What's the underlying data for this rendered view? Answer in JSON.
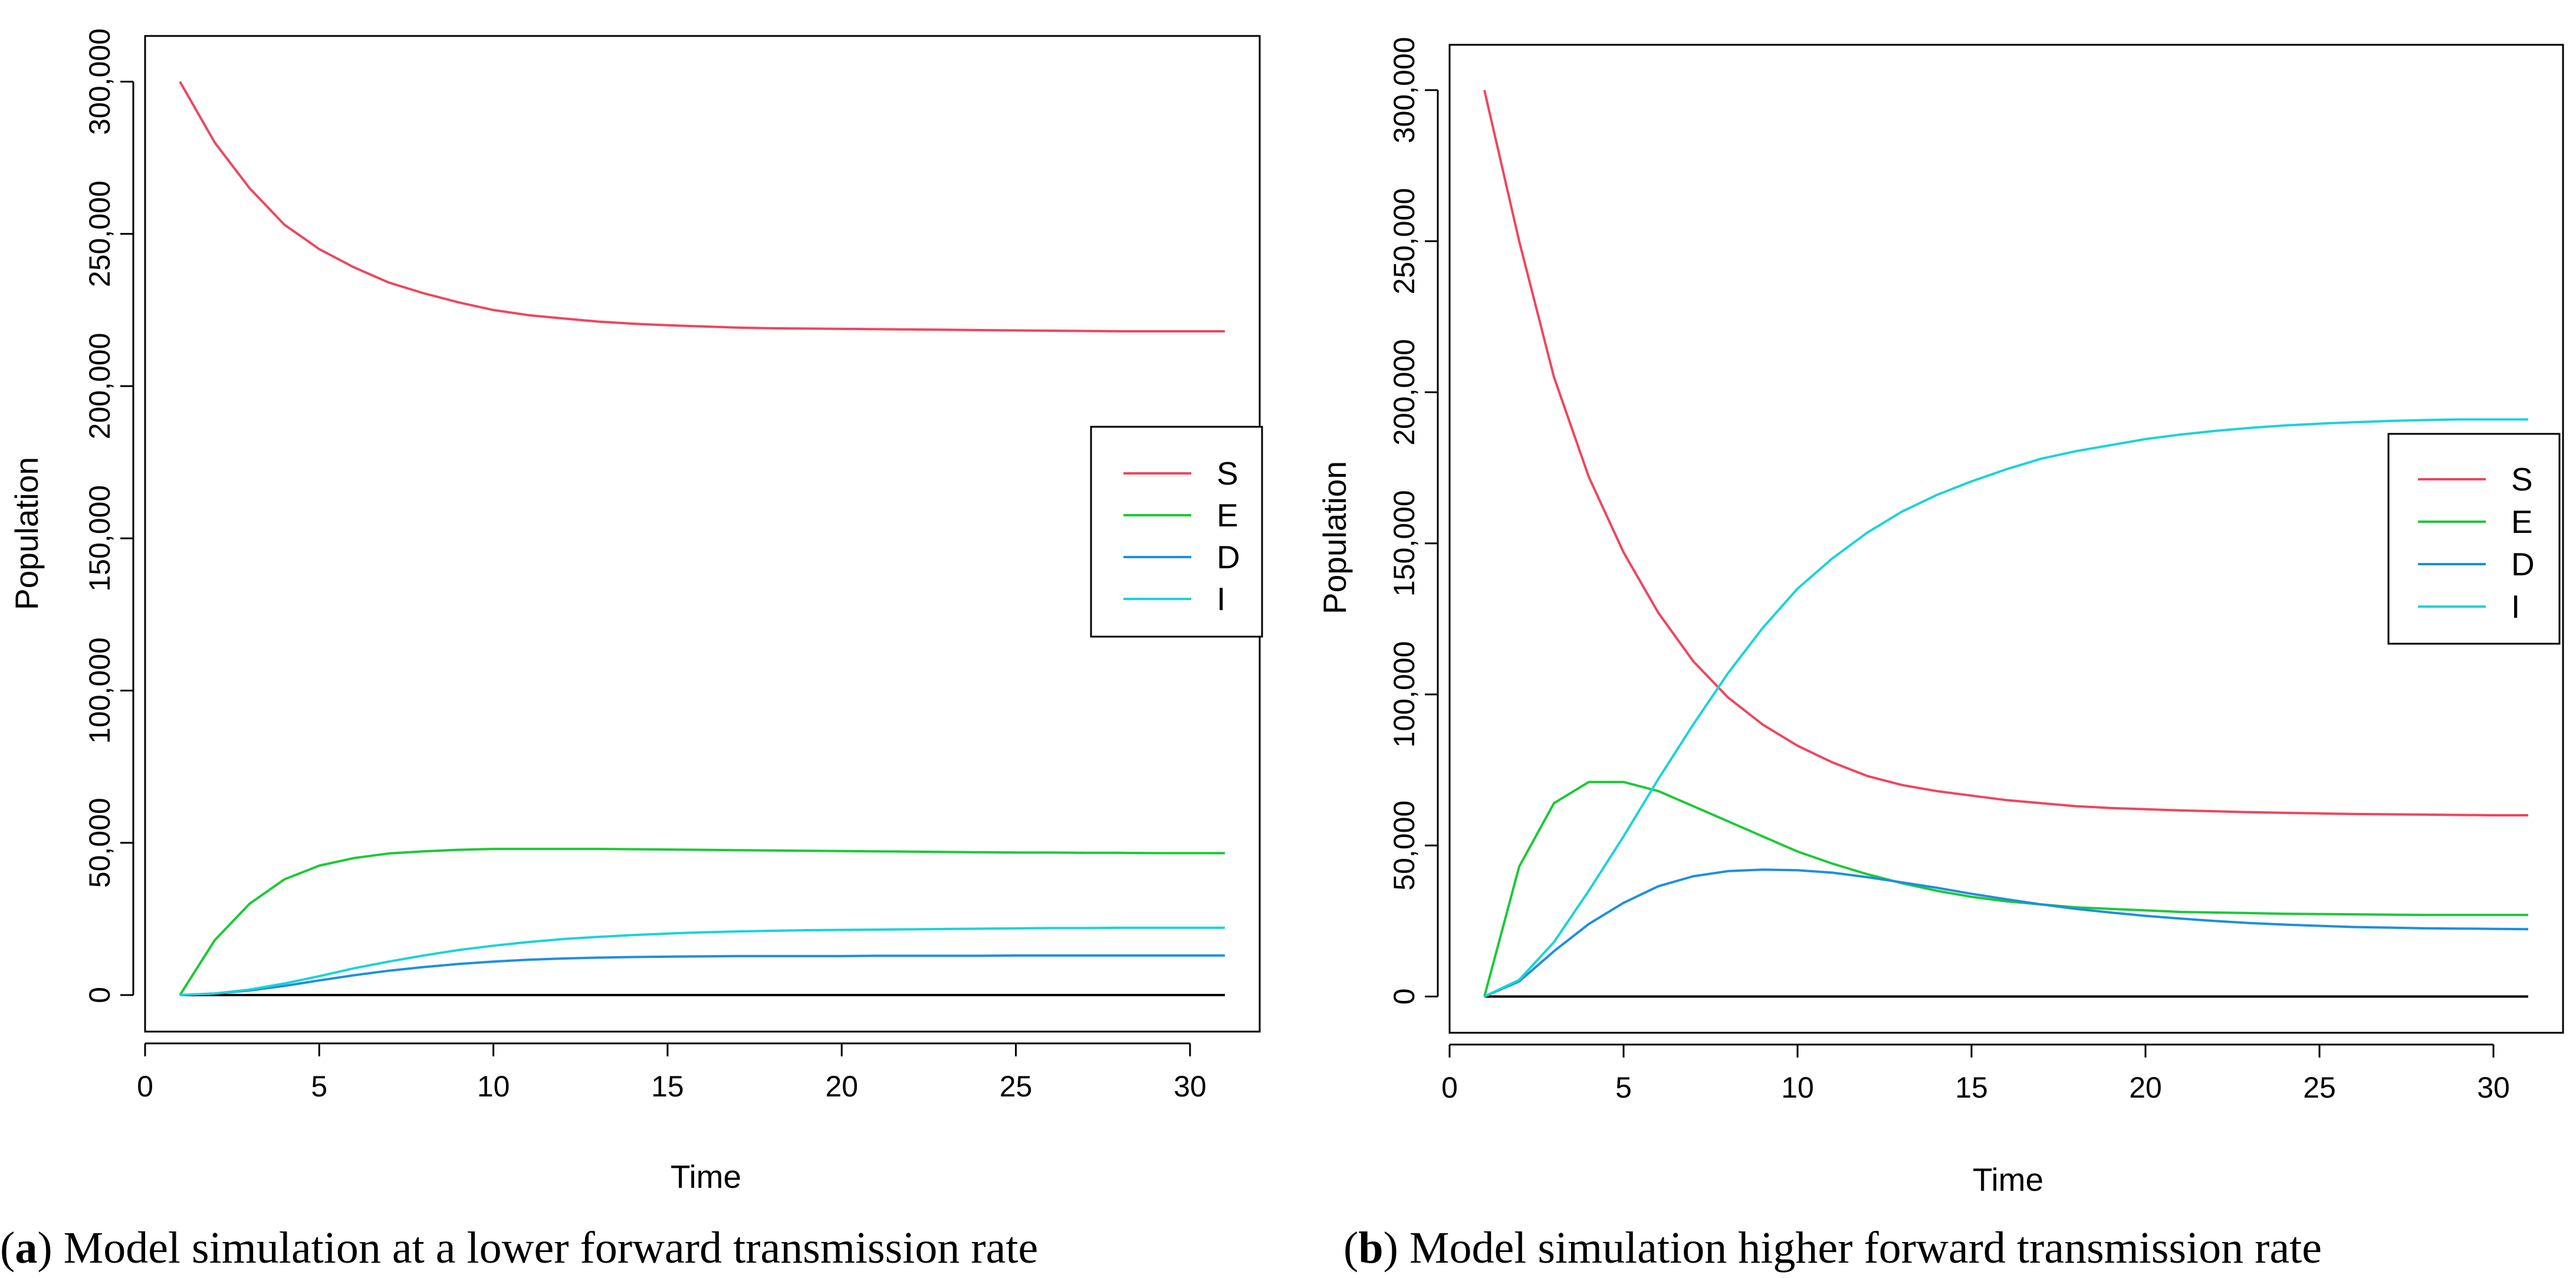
{
  "chart_data": [
    {
      "type": "line",
      "caption_label": "a",
      "caption_text": "Model simulation at a lower forward transmission rate",
      "xlabel": "Time",
      "ylabel": "Population",
      "xlim": [
        0,
        32
      ],
      "ylim": [
        -12000,
        315000
      ],
      "xticks": [
        0,
        5,
        10,
        15,
        20,
        25,
        30
      ],
      "yticks": [
        0,
        50000,
        100000,
        150000,
        200000,
        250000,
        300000
      ],
      "ytick_labels": [
        "0",
        "50,000",
        "100,000",
        "150,000",
        "200,000",
        "250,000",
        "300,000"
      ],
      "legend_position": "right-middle",
      "x": [
        1,
        2,
        3,
        4,
        5,
        6,
        7,
        8,
        9,
        10,
        11,
        12,
        13,
        14,
        15,
        16,
        17,
        18,
        19,
        20,
        21,
        22,
        23,
        24,
        25,
        26,
        27,
        28,
        29,
        30,
        31
      ],
      "baseline": {
        "value": 0,
        "x_from": 1,
        "x_to": 31,
        "color": "#000000"
      },
      "series": [
        {
          "name": "S",
          "color": "#F0455E",
          "values": [
            300000,
            280000,
            265000,
            253000,
            245000,
            239000,
            234000,
            230500,
            227500,
            225000,
            223300,
            222200,
            221200,
            220500,
            220000,
            219600,
            219200,
            219000,
            218900,
            218800,
            218700,
            218600,
            218500,
            218400,
            218300,
            218200,
            218100,
            218000,
            218000,
            218000,
            218000
          ]
        },
        {
          "name": "E",
          "color": "#1BC937",
          "values": [
            0,
            18000,
            30000,
            38000,
            42500,
            45000,
            46500,
            47200,
            47700,
            48000,
            48000,
            48000,
            48000,
            47900,
            47800,
            47700,
            47600,
            47500,
            47400,
            47300,
            47200,
            47100,
            47000,
            46900,
            46800,
            46800,
            46700,
            46700,
            46600,
            46600,
            46600
          ]
        },
        {
          "name": "D",
          "color": "#1D8FE0",
          "values": [
            0,
            500,
            1500,
            3000,
            4800,
            6500,
            8000,
            9200,
            10200,
            11000,
            11600,
            12000,
            12300,
            12500,
            12600,
            12700,
            12800,
            12800,
            12800,
            12800,
            12900,
            12900,
            12900,
            12900,
            13000,
            13000,
            13000,
            13000,
            13000,
            13000,
            13000
          ]
        },
        {
          "name": "I",
          "color": "#19D4D8",
          "values": [
            0,
            500,
            1800,
            3800,
            6200,
            8800,
            11000,
            13000,
            14800,
            16200,
            17400,
            18400,
            19100,
            19700,
            20200,
            20600,
            20900,
            21100,
            21300,
            21400,
            21500,
            21600,
            21700,
            21800,
            21900,
            22000,
            22000,
            22100,
            22100,
            22100,
            22100
          ]
        }
      ]
    },
    {
      "type": "line",
      "caption_label": "b",
      "caption_text": "Model simulation higher forward transmission rate",
      "xlabel": "Time",
      "ylabel": "Population",
      "xlim": [
        0,
        32
      ],
      "ylim": [
        -12000,
        315000
      ],
      "xticks": [
        0,
        5,
        10,
        15,
        20,
        25,
        30
      ],
      "yticks": [
        0,
        50000,
        100000,
        150000,
        200000,
        250000,
        300000
      ],
      "ytick_labels": [
        "0",
        "50,000",
        "100,000",
        "150,000",
        "200,000",
        "250,000",
        "300,000"
      ],
      "legend_position": "right-middle",
      "x": [
        1,
        2,
        3,
        4,
        5,
        6,
        7,
        8,
        9,
        10,
        11,
        12,
        13,
        14,
        15,
        16,
        17,
        18,
        19,
        20,
        21,
        22,
        23,
        24,
        25,
        26,
        27,
        28,
        29,
        30,
        31
      ],
      "baseline": {
        "value": 0,
        "x_from": 1,
        "x_to": 31,
        "color": "#000000"
      },
      "series": [
        {
          "name": "S",
          "color": "#F0455E",
          "values": [
            300000,
            250000,
            205000,
            172000,
            147000,
            127000,
            111000,
            99000,
            90000,
            83000,
            77500,
            73000,
            70000,
            68000,
            66500,
            65000,
            64000,
            63000,
            62400,
            62000,
            61600,
            61300,
            61000,
            60800,
            60600,
            60400,
            60300,
            60200,
            60100,
            60000,
            60000
          ]
        },
        {
          "name": "E",
          "color": "#1BC937",
          "values": [
            0,
            43000,
            64000,
            71000,
            71000,
            68000,
            63000,
            58000,
            53000,
            48000,
            44000,
            40500,
            37500,
            35000,
            33000,
            31500,
            30500,
            29500,
            29000,
            28500,
            28000,
            27800,
            27600,
            27400,
            27300,
            27200,
            27100,
            27000,
            27000,
            27000,
            27000
          ]
        },
        {
          "name": "D",
          "color": "#1D8FE0",
          "values": [
            0,
            5000,
            15000,
            24000,
            31000,
            36500,
            39800,
            41500,
            42000,
            41800,
            41000,
            39500,
            37800,
            36000,
            34000,
            32200,
            30500,
            29000,
            27800,
            26700,
            25800,
            25000,
            24300,
            23800,
            23400,
            23000,
            22800,
            22600,
            22500,
            22400,
            22300
          ]
        },
        {
          "name": "I",
          "color": "#19D4D8",
          "values": [
            0,
            5500,
            18000,
            35000,
            53000,
            72000,
            90000,
            107000,
            122000,
            135000,
            145000,
            153500,
            160500,
            166000,
            170500,
            174500,
            178000,
            180500,
            182500,
            184500,
            186000,
            187200,
            188200,
            189000,
            189600,
            190100,
            190500,
            190800,
            191000,
            191000,
            191000
          ]
        }
      ]
    }
  ]
}
